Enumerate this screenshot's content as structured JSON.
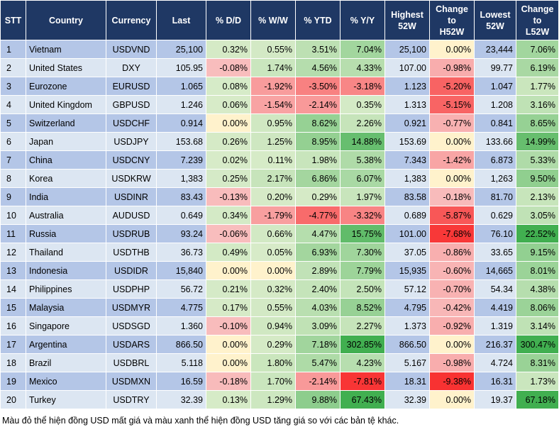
{
  "headers": [
    "STT",
    "Country",
    "Currency",
    "Last",
    "% D/D",
    "% W/W",
    "% YTD",
    "% Y/Y",
    "Highest\n52W",
    "Change\nto\nH52W",
    "Lowest\n52W",
    "Change\nto\nL52W"
  ],
  "rows": [
    [
      "1",
      "Vietnam",
      "USDVND",
      "25,100",
      "0.32%",
      "0.55%",
      "3.51%",
      "7.04%",
      "25,100",
      "0.00%",
      "23,444",
      "7.06%"
    ],
    [
      "2",
      "United States",
      "DXY",
      "105.95",
      "-0.08%",
      "1.74%",
      "4.56%",
      "4.33%",
      "107.00",
      "-0.98%",
      "99.77",
      "6.19%"
    ],
    [
      "3",
      "Eurozone",
      "EURUSD",
      "1.065",
      "0.08%",
      "-1.92%",
      "-3.50%",
      "-3.18%",
      "1.123",
      "-5.20%",
      "1.047",
      "1.77%"
    ],
    [
      "4",
      "United Kingdom",
      "GBPUSD",
      "1.246",
      "0.06%",
      "-1.54%",
      "-2.14%",
      "0.35%",
      "1.313",
      "-5.15%",
      "1.208",
      "3.16%"
    ],
    [
      "5",
      "Switzerland",
      "USDCHF",
      "0.914",
      "0.00%",
      "0.95%",
      "8.62%",
      "2.26%",
      "0.921",
      "-0.77%",
      "0.841",
      "8.65%"
    ],
    [
      "6",
      "Japan",
      "USDJPY",
      "153.68",
      "0.26%",
      "1.25%",
      "8.95%",
      "14.88%",
      "153.69",
      "0.00%",
      "133.66",
      "14.99%"
    ],
    [
      "7",
      "China",
      "USDCNY",
      "7.239",
      "0.02%",
      "0.11%",
      "1.98%",
      "5.38%",
      "7.343",
      "-1.42%",
      "6.873",
      "5.33%"
    ],
    [
      "8",
      "Korea",
      "USDKRW",
      "1,383",
      "0.25%",
      "2.17%",
      "6.86%",
      "6.07%",
      "1,383",
      "0.00%",
      "1,263",
      "9.50%"
    ],
    [
      "9",
      "India",
      "USDINR",
      "83.43",
      "-0.13%",
      "0.20%",
      "0.29%",
      "1.97%",
      "83.58",
      "-0.18%",
      "81.70",
      "2.13%"
    ],
    [
      "10",
      "Australia",
      "AUDUSD",
      "0.649",
      "0.34%",
      "-1.79%",
      "-4.77%",
      "-3.32%",
      "0.689",
      "-5.87%",
      "0.629",
      "3.05%"
    ],
    [
      "11",
      "Russia",
      "USDRUB",
      "93.24",
      "-0.06%",
      "0.66%",
      "4.47%",
      "15.75%",
      "101.00",
      "-7.68%",
      "76.10",
      "22.52%"
    ],
    [
      "12",
      "Thailand",
      "USDTHB",
      "36.73",
      "0.49%",
      "0.05%",
      "6.93%",
      "7.30%",
      "37.05",
      "-0.86%",
      "33.65",
      "9.15%"
    ],
    [
      "13",
      "Indonesia",
      "USDIDR",
      "15,840",
      "0.00%",
      "0.00%",
      "2.89%",
      "7.79%",
      "15,935",
      "-0.60%",
      "14,665",
      "8.01%"
    ],
    [
      "14",
      "Philippines",
      "USDPHP",
      "56.72",
      "0.21%",
      "0.32%",
      "2.40%",
      "2.50%",
      "57.12",
      "-0.70%",
      "54.34",
      "4.38%"
    ],
    [
      "15",
      "Malaysia",
      "USDMYR",
      "4.775",
      "0.17%",
      "0.55%",
      "4.03%",
      "8.52%",
      "4.795",
      "-0.42%",
      "4.419",
      "8.06%"
    ],
    [
      "16",
      "Singapore",
      "USDSGD",
      "1.360",
      "-0.10%",
      "0.94%",
      "3.09%",
      "2.27%",
      "1.373",
      "-0.92%",
      "1.319",
      "3.14%"
    ],
    [
      "17",
      "Argentina",
      "USDARS",
      "866.50",
      "0.00%",
      "0.29%",
      "7.18%",
      "302.85%",
      "866.50",
      "0.00%",
      "216.37",
      "300.47%"
    ],
    [
      "18",
      "Brazil",
      "USDBRL",
      "5.118",
      "0.00%",
      "1.80%",
      "5.47%",
      "4.23%",
      "5.167",
      "-0.98%",
      "4.724",
      "8.31%"
    ],
    [
      "19",
      "Mexico",
      "USDMXN",
      "16.59",
      "-0.18%",
      "1.70%",
      "-2.14%",
      "-7.81%",
      "18.31",
      "-9.38%",
      "16.31",
      "1.73%"
    ],
    [
      "20",
      "Turkey",
      "USDTRY",
      "32.39",
      "0.13%",
      "1.29%",
      "9.88%",
      "67.43%",
      "32.39",
      "0.00%",
      "19.37",
      "67.18%"
    ]
  ],
  "caption": "Màu đỏ thể hiện đồng USD mất giá và màu xanh thể hiện đồng USD tăng giá so với các bản tệ khác.",
  "colors": {
    "header_bg": "#1f3864",
    "row_odd": "#b4c6e7",
    "row_even": "#dce6f2"
  }
}
